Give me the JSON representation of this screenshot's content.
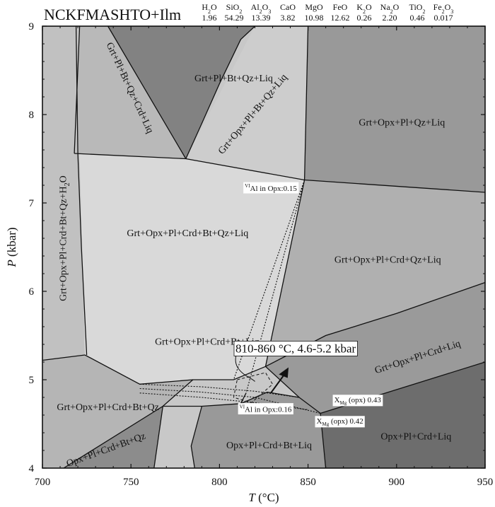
{
  "chart_data": {
    "type": "phase-diagram",
    "title": "NCKFMASHTO+Ilm",
    "composition": [
      {
        "oxide": "H",
        "sub": "2",
        "tail": "O",
        "value": "1.96"
      },
      {
        "oxide": "SiO",
        "sub": "2",
        "tail": "",
        "value": "54.29"
      },
      {
        "oxide": "Al",
        "sub": "2",
        "tail": "O",
        "sub2": "3",
        "value": "13.39"
      },
      {
        "oxide": "CaO",
        "sub": "",
        "tail": "",
        "value": "3.82"
      },
      {
        "oxide": "MgO",
        "sub": "",
        "tail": "",
        "value": "10.98"
      },
      {
        "oxide": "FeO",
        "sub": "",
        "tail": "",
        "value": "12.62"
      },
      {
        "oxide": "K",
        "sub": "2",
        "tail": "O",
        "value": "0.26"
      },
      {
        "oxide": "Na",
        "sub": "2",
        "tail": "O",
        "value": "2.20"
      },
      {
        "oxide": "TiO",
        "sub": "2",
        "tail": "",
        "value": "0.46"
      },
      {
        "oxide": "Fe",
        "sub": "2",
        "tail": "O",
        "sub2": "3",
        "value": "0.017"
      }
    ],
    "xlabel_var": "T",
    "xlabel_unit": "(°C)",
    "ylabel_var": "P",
    "ylabel_unit": "(kbar)",
    "xlim": [
      700,
      950
    ],
    "ylim": [
      4,
      9
    ],
    "xticks": [
      700,
      750,
      800,
      850,
      900,
      950
    ],
    "yticks": [
      4,
      5,
      6,
      7,
      8,
      9
    ],
    "fields": [
      {
        "label": "Grt+Pl+Bt+Qz+Liq",
        "x": 808,
        "y": 8.4,
        "rot": 0,
        "fill": "#828282",
        "poly": [
          [
            737,
            9
          ],
          [
            820,
            9
          ],
          [
            812,
            8.85
          ],
          [
            800,
            8.35
          ],
          [
            790,
            7.9
          ],
          [
            781,
            7.5
          ]
        ]
      },
      {
        "label": "Grt+Pl+Bt+Qz+Crd+Liq",
        "x": 749,
        "y": 8.3,
        "rot": 65,
        "fill": "#b9b9b9",
        "poly": [
          [
            721,
            9
          ],
          [
            737,
            9
          ],
          [
            781,
            7.5
          ],
          [
            718,
            7.56
          ]
        ]
      },
      {
        "label": "Grt+Opx+Pl+Bt+Qz+Liq",
        "x": 819,
        "y": 8.0,
        "rot": -50,
        "fill": "#cdcdcd",
        "poly": [
          [
            820,
            9
          ],
          [
            850,
            9
          ],
          [
            848,
            7.26
          ],
          [
            781,
            7.5
          ]
        ]
      },
      {
        "label": "Grt+Opx+Pl+Qz+Liq",
        "x": 903,
        "y": 7.9,
        "rot": 0,
        "fill": "#999999",
        "poly": [
          [
            850,
            9
          ],
          [
            950,
            9
          ],
          [
            950,
            7.12
          ],
          [
            848,
            7.26
          ]
        ]
      },
      {
        "label": "Grt+Opx+Pl+Crd+Bt+Qz+H2O",
        "x": 712,
        "y": 6.6,
        "rot": -90,
        "fill": "#c1c1c1",
        "poly": [
          [
            700,
            9
          ],
          [
            719,
            9
          ],
          [
            720,
            7.56
          ],
          [
            722,
            6.5
          ],
          [
            725,
            5.28
          ],
          [
            700,
            5.22
          ]
        ]
      },
      {
        "label": "Grt+Opx+Pl+Crd+Bt+Qz+Liq",
        "x": 782,
        "y": 6.65,
        "rot": 0,
        "fill": "#d9d9d9",
        "poly": [
          [
            721,
            7.56
          ],
          [
            781,
            7.5
          ],
          [
            848,
            7.26
          ],
          [
            826,
            5.15
          ],
          [
            808,
            5.0
          ],
          [
            785,
            5.0
          ],
          [
            755,
            4.95
          ],
          [
            724,
            5.28
          ]
        ]
      },
      {
        "label": "Grt+Opx+Pl+Crd+Qz+Liq",
        "x": 895,
        "y": 6.35,
        "rot": 0,
        "fill": "#b0b0b0",
        "poly": [
          [
            848,
            7.26
          ],
          [
            950,
            7.12
          ],
          [
            950,
            6.1
          ],
          [
            900,
            5.75
          ],
          [
            860,
            5.5
          ],
          [
            826,
            5.15
          ]
        ]
      },
      {
        "label": "Grt+Opx+Pl+Crd+Bt+Liq",
        "x": 793,
        "y": 5.42,
        "rot": 0,
        "fill": "#d9d9d9",
        "poly": []
      },
      {
        "label": "Grt+Opx+Pl+Crd+Liq",
        "x": 912,
        "y": 5.25,
        "rot": -18,
        "fill": "#9a9a9a",
        "poly": [
          [
            826,
            5.15
          ],
          [
            860,
            5.5
          ],
          [
            900,
            5.75
          ],
          [
            950,
            6.1
          ],
          [
            950,
            5.2
          ],
          [
            857,
            4.62
          ],
          [
            845,
            4.8
          ]
        ]
      },
      {
        "label": "Grt+Opx+Pl+Crd+Bt+Qz",
        "x": 737,
        "y": 4.68,
        "rot": 0,
        "fill": "#b5b5b5",
        "poly": [
          [
            700,
            5.22
          ],
          [
            724,
            5.28
          ],
          [
            755,
            4.95
          ],
          [
            785,
            5.0
          ],
          [
            768,
            4.7
          ],
          [
            712,
            4.0
          ],
          [
            700,
            4.0
          ]
        ]
      },
      {
        "label": "Opx+Pl+Crd+Bt+Qz",
        "x": 736,
        "y": 4.2,
        "rot": -20,
        "fill": "#8c8c8c",
        "poly": [
          [
            712,
            4.0
          ],
          [
            768,
            4.7
          ],
          [
            763,
            4.0
          ]
        ]
      },
      {
        "label": "Opx+Pl+Crd+Bt+Liq",
        "x": 828,
        "y": 4.25,
        "rot": 0,
        "fill": "#999999",
        "poly": [
          [
            786,
            4.0
          ],
          [
            784,
            4.25
          ],
          [
            790,
            4.7
          ],
          [
            812,
            4.73
          ],
          [
            827,
            4.86
          ],
          [
            845,
            4.8
          ],
          [
            857,
            4.62
          ],
          [
            860,
            4.0
          ]
        ]
      },
      {
        "label": "Opx+Pl+Crd+Liq",
        "x": 911,
        "y": 4.35,
        "rot": 0,
        "fill": "#6d6d6d",
        "poly": [
          [
            857,
            4.62
          ],
          [
            950,
            5.2
          ],
          [
            950,
            4.0
          ],
          [
            860,
            4.0
          ]
        ]
      }
    ],
    "annotations": [
      {
        "pre": "VI",
        "text": "Al in Opx:0.15",
        "x": 829,
        "y": 7.16
      },
      {
        "pre": "VI",
        "text": "Al in Opx:0.16",
        "x": 826,
        "y": 4.66
      },
      {
        "pre": "",
        "text": "X",
        "sub": "Mg",
        "tail": " (opx) 0.43",
        "x": 878,
        "y": 4.77
      },
      {
        "pre": "",
        "text": "X",
        "sub": "Mg",
        "tail": " (opx) 0.42",
        "x": 868,
        "y": 4.53
      },
      {
        "pre": "",
        "text": "810-860 °C, 4.6-5.2 kbar",
        "x": 843,
        "y": 5.34
      }
    ]
  }
}
